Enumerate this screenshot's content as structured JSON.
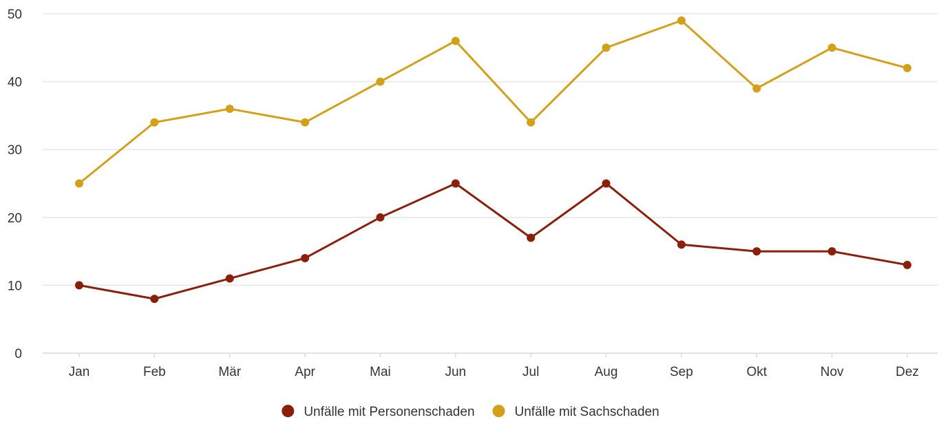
{
  "chart_data": {
    "type": "line",
    "categories": [
      "Jan",
      "Feb",
      "Mär",
      "Apr",
      "Mai",
      "Jun",
      "Jul",
      "Aug",
      "Sep",
      "Okt",
      "Nov",
      "Dez"
    ],
    "ylim": [
      0,
      50
    ],
    "yticks": [
      0,
      10,
      20,
      30,
      40,
      50
    ],
    "grid": true,
    "legend_position": "bottom-center",
    "series": [
      {
        "name": "Unfälle mit Personenschaden",
        "color": "#8b1f0a",
        "values": [
          10,
          8,
          11,
          14,
          20,
          25,
          17,
          25,
          16,
          15,
          15,
          13
        ]
      },
      {
        "name": "Unfälle mit Sachschaden",
        "color": "#d4a017",
        "values": [
          25,
          34,
          36,
          34,
          40,
          46,
          34,
          45,
          49,
          39,
          45,
          42
        ]
      }
    ]
  }
}
